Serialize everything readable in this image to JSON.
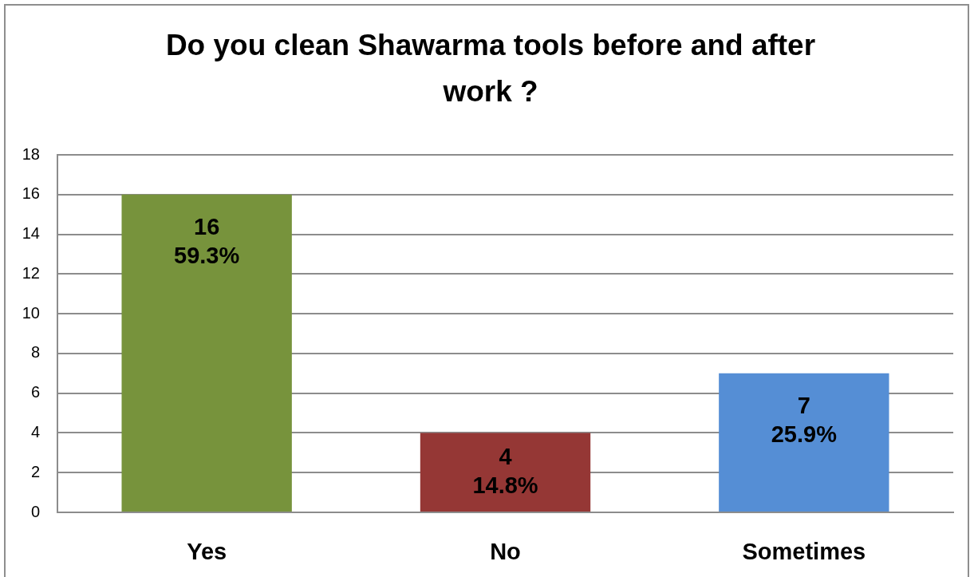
{
  "chart_data": {
    "type": "bar",
    "title": "Do you clean Shawarma tools before and after work ?",
    "categories": [
      "Yes",
      "No",
      "Sometimes"
    ],
    "values": [
      16,
      4,
      7
    ],
    "colors": [
      "#77933c",
      "#953735",
      "#558ed5"
    ],
    "value_labels": [
      "16\n59.3%",
      "4\n14.8%",
      "7\n25.9%"
    ],
    "ylim": [
      0,
      18
    ],
    "yticks": [
      0,
      2,
      4,
      6,
      8,
      10,
      12,
      14,
      16,
      18
    ],
    "grid": "y"
  }
}
